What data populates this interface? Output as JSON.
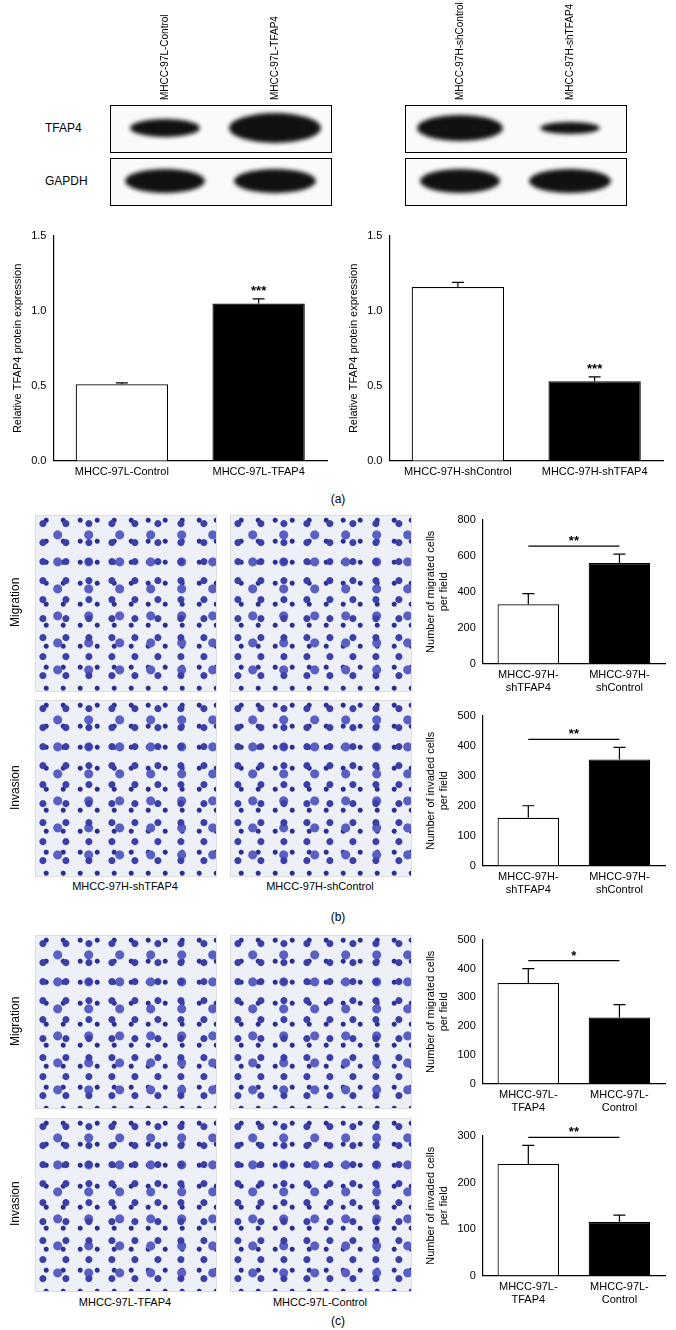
{
  "panel_labels": [
    "(a)",
    "(b)",
    "(c)"
  ],
  "blot_rows": [
    "TFAP4",
    "GAPDH"
  ],
  "blots": [
    {
      "lanes": [
        "MHCC-97L-Control",
        "MHCC-97L-TFAP4"
      ]
    },
    {
      "lanes": [
        "MHCC-97H-shControl",
        "MHCC-97H-shTFAP4"
      ]
    }
  ],
  "micrographs": [
    {
      "rows": [
        "Migration",
        "Invasion"
      ],
      "columns": [
        "MHCC-97H-shTFAP4",
        "MHCC-97H-shControl"
      ]
    },
    {
      "rows": [
        "Migration",
        "Invasion"
      ],
      "columns": [
        "MHCC-97L-TFAP4",
        "MHCC-97L-Control"
      ]
    }
  ],
  "chart_data": [
    {
      "type": "bar",
      "y_label": "Relative TFAP4 protein expression",
      "categories": [
        "MHCC-97L-Control",
        "MHCC-97L-TFAP4"
      ],
      "values": [
        0.51,
        1.05
      ],
      "errors": [
        0.01,
        0.03
      ],
      "colors": [
        "#ffffff",
        "#000000"
      ],
      "ylim": [
        0,
        1.5
      ],
      "yticks": [
        {
          "value": 0,
          "label": "0.0"
        },
        0.5,
        {
          "value": 1,
          "label": "1.0"
        },
        1.5
      ],
      "grid": false,
      "significance": {
        "text": "***",
        "categories": [
          "MHCC-97L-TFAP4"
        ]
      }
    },
    {
      "type": "bar",
      "y_label": "Relative TFAP4 protein expression",
      "categories": [
        "MHCC-97H-shControl",
        "MHCC-97H-shTFAP4"
      ],
      "values": [
        1.16,
        0.53
      ],
      "errors": [
        0.03,
        0.03
      ],
      "colors": [
        "#ffffff",
        "#000000"
      ],
      "ylim": [
        0,
        1.5
      ],
      "yticks": [
        {
          "value": 0,
          "label": "0.0"
        },
        0.5,
        {
          "value": 1,
          "label": "1.0"
        },
        1.5
      ],
      "grid": false,
      "significance": {
        "text": "***",
        "categories": [
          "MHCC-97H-shTFAP4"
        ]
      }
    },
    {
      "type": "bar",
      "y_label": "Number of migrated cells per field",
      "categories": [
        "MHCC-97H-shTFAP4",
        "MHCC-97H-shControl"
      ],
      "values": [
        330,
        560
      ],
      "errors": [
        60,
        50
      ],
      "colors": [
        "#ffffff",
        "#000000"
      ],
      "ylim": [
        0,
        800
      ],
      "yticks": [
        0,
        200,
        400,
        600,
        800
      ],
      "grid": false,
      "significance": {
        "text": "**",
        "categories": [
          "MHCC-97H-shTFAP4",
          "MHCC-97H-shControl"
        ]
      }
    },
    {
      "type": "bar",
      "y_label": "Number of invaded cells per field",
      "categories": [
        "MHCC-97H-shTFAP4",
        "MHCC-97H-shControl"
      ],
      "values": [
        160,
        355
      ],
      "errors": [
        40,
        40
      ],
      "colors": [
        "#ffffff",
        "#000000"
      ],
      "ylim": [
        0,
        500
      ],
      "yticks": [
        0,
        100,
        200,
        300,
        400,
        500
      ],
      "grid": false,
      "significance": {
        "text": "**",
        "categories": [
          "MHCC-97H-shTFAP4",
          "MHCC-97H-shControl"
        ]
      }
    },
    {
      "type": "bar",
      "y_label": "Number of migrated cells per field",
      "categories": [
        "MHCC-97L-TFAP4",
        "MHCC-97L-Control"
      ],
      "values": [
        350,
        230
      ],
      "errors": [
        50,
        45
      ],
      "colors": [
        "#ffffff",
        "#000000"
      ],
      "ylim": [
        0,
        500
      ],
      "yticks": [
        0,
        100,
        200,
        300,
        400,
        500
      ],
      "grid": false,
      "significance": {
        "text": "*",
        "categories": [
          "MHCC-97L-TFAP4",
          "MHCC-97L-Control"
        ]
      }
    },
    {
      "type": "bar",
      "y_label": "Number of invaded cells per field",
      "categories": [
        "MHCC-97L-TFAP4",
        "MHCC-97L-Control"
      ],
      "values": [
        240,
        115
      ],
      "errors": [
        40,
        15
      ],
      "colors": [
        "#ffffff",
        "#000000"
      ],
      "ylim": [
        0,
        300
      ],
      "yticks": [
        0,
        100,
        200,
        300
      ],
      "grid": false,
      "significance": {
        "text": "**",
        "categories": [
          "MHCC-97L-TFAP4",
          "MHCC-97L-Control"
        ]
      }
    }
  ]
}
